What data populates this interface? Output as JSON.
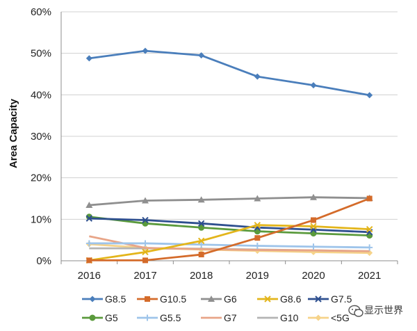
{
  "chart_data": {
    "type": "line",
    "title": "",
    "xlabel": "",
    "ylabel": "Area Capacity",
    "ylim": [
      0,
      60
    ],
    "yticks": [
      0,
      10,
      20,
      30,
      40,
      50,
      60
    ],
    "yticklabels": [
      "0%",
      "10%",
      "20%",
      "30%",
      "40%",
      "50%",
      "60%"
    ],
    "categories": [
      "2016",
      "2017",
      "2018",
      "2019",
      "2020",
      "2021"
    ],
    "grid": true,
    "legend_position": "bottom",
    "series": [
      {
        "name": "G8.5",
        "color": "#4a7ebb",
        "marker": "diamond",
        "values": [
          48.8,
          50.6,
          49.5,
          44.4,
          42.3,
          39.9
        ]
      },
      {
        "name": "G10.5",
        "color": "#d46b2a",
        "marker": "square",
        "values": [
          0.1,
          0.1,
          1.5,
          5.5,
          9.8,
          15.0
        ]
      },
      {
        "name": "G6",
        "color": "#8f8f8f",
        "marker": "triangle",
        "values": [
          13.4,
          14.5,
          14.7,
          15.0,
          15.3,
          15.1
        ]
      },
      {
        "name": "G8.6",
        "color": "#e3b51b",
        "marker": "x",
        "values": [
          0.1,
          2.1,
          4.8,
          8.6,
          8.3,
          7.6
        ]
      },
      {
        "name": "G7.5",
        "color": "#2e4f8f",
        "marker": "x",
        "values": [
          10.2,
          9.8,
          9.0,
          8.0,
          7.5,
          6.9
        ]
      },
      {
        "name": "G5",
        "color": "#5a9a3c",
        "marker": "circle",
        "values": [
          10.6,
          9.0,
          8.0,
          7.1,
          6.6,
          6.1
        ]
      },
      {
        "name": "G5.5",
        "color": "#9ec4ea",
        "marker": "plus",
        "values": [
          4.2,
          4.2,
          3.9,
          3.6,
          3.4,
          3.2
        ]
      },
      {
        "name": "G7",
        "color": "#e8a588",
        "marker": "none",
        "values": [
          5.9,
          3.1,
          2.8,
          2.6,
          2.5,
          2.3
        ]
      },
      {
        "name": "G10",
        "color": "#b4b4b4",
        "marker": "none",
        "values": [
          3.0,
          3.0,
          2.9,
          2.7,
          2.5,
          2.3
        ]
      },
      {
        "name": "<5G",
        "color": "#f6d38a",
        "marker": "diamond",
        "values": [
          4.0,
          3.1,
          2.7,
          2.4,
          2.1,
          1.9
        ]
      }
    ]
  },
  "watermark": {
    "text": "显示世界",
    "icon": "wechat-icon"
  }
}
